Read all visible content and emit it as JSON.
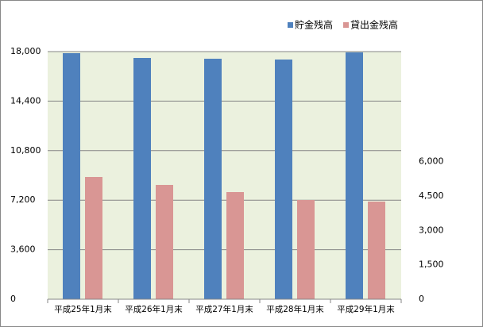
{
  "chart_data": {
    "type": "bar",
    "categories": [
      "平成25年1月末",
      "平成26年1月末",
      "平成27年1月末",
      "平成28年1月末",
      "平成29年1月末"
    ],
    "series": [
      {
        "name": "貯金残高",
        "color": "#4f81bd",
        "values": [
          17885,
          17538,
          17481,
          17423,
          17942
        ]
      },
      {
        "name": "貸出金残高",
        "color": "#d99694",
        "axis": "y2",
        "values": [
          5331,
          4985,
          4673,
          4327,
          4258
        ]
      }
    ],
    "ylim": [
      0,
      18000
    ],
    "yticks": [
      0,
      {
        "value": 3600,
        "label": "3,600"
      },
      {
        "value": 7200,
        "label": "7,200"
      },
      {
        "value": 10800,
        "label": "10,800"
      },
      {
        "value": 14400,
        "label": "14,400"
      },
      {
        "value": 18000,
        "label": "18,000"
      }
    ],
    "y2lim": [
      0,
      10800
    ],
    "y2ticks": [
      0,
      {
        "value": 1500,
        "label": "1,500"
      },
      {
        "value": 3000,
        "label": "3,000"
      },
      {
        "value": 4500,
        "label": "4,500"
      },
      {
        "value": 6000,
        "label": "6,000"
      }
    ],
    "grid": true,
    "plot_background": "#ebf1de",
    "legend": "top-right"
  }
}
